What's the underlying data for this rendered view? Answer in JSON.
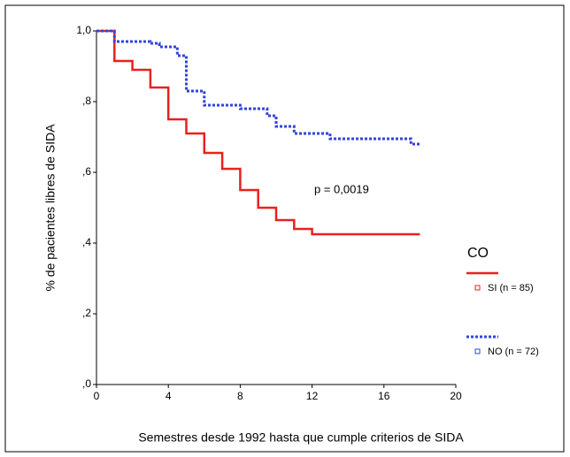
{
  "chart_data": {
    "type": "step",
    "xlabel": "Semestres desde 1992 hasta que cumple criterios de SIDA",
    "ylabel": "% de pacientes libres de SIDA",
    "annotation": "p = 0,0019",
    "legend_title": "CO",
    "legend": "right",
    "xlim": [
      0,
      20
    ],
    "xticks": [
      0,
      4,
      8,
      12,
      16,
      20
    ],
    "ylim": [
      0,
      1
    ],
    "yticks": [
      {
        "value": 0,
        "label": ",0"
      },
      {
        "value": 0.2,
        "label": ",2"
      },
      {
        "value": 0.4,
        "label": ",4"
      },
      {
        "value": 0.6,
        "label": ",6"
      },
      {
        "value": 0.8,
        "label": ",8"
      },
      {
        "value": 1,
        "label": "1,0"
      }
    ],
    "series": [
      {
        "name": "SI (n = 85)",
        "color": "#e8211f",
        "linestyle": "solid",
        "x": [
          0,
          1,
          2,
          3,
          4,
          5,
          6,
          7,
          8,
          9,
          10,
          11,
          12,
          18
        ],
        "values": [
          1,
          0.915,
          0.89,
          0.84,
          0.75,
          0.71,
          0.655,
          0.61,
          0.55,
          0.5,
          0.465,
          0.44,
          0.425,
          0.425
        ]
      },
      {
        "name": "NO (n = 72)",
        "color": "#3344dd",
        "linestyle": "dotted",
        "x": [
          0,
          1,
          3,
          3.5,
          4.5,
          5,
          6,
          8,
          9.5,
          10,
          11,
          13,
          17.5,
          18
        ],
        "values": [
          1,
          0.97,
          0.965,
          0.955,
          0.93,
          0.83,
          0.79,
          0.78,
          0.76,
          0.73,
          0.71,
          0.695,
          0.68,
          0.68
        ]
      }
    ]
  }
}
